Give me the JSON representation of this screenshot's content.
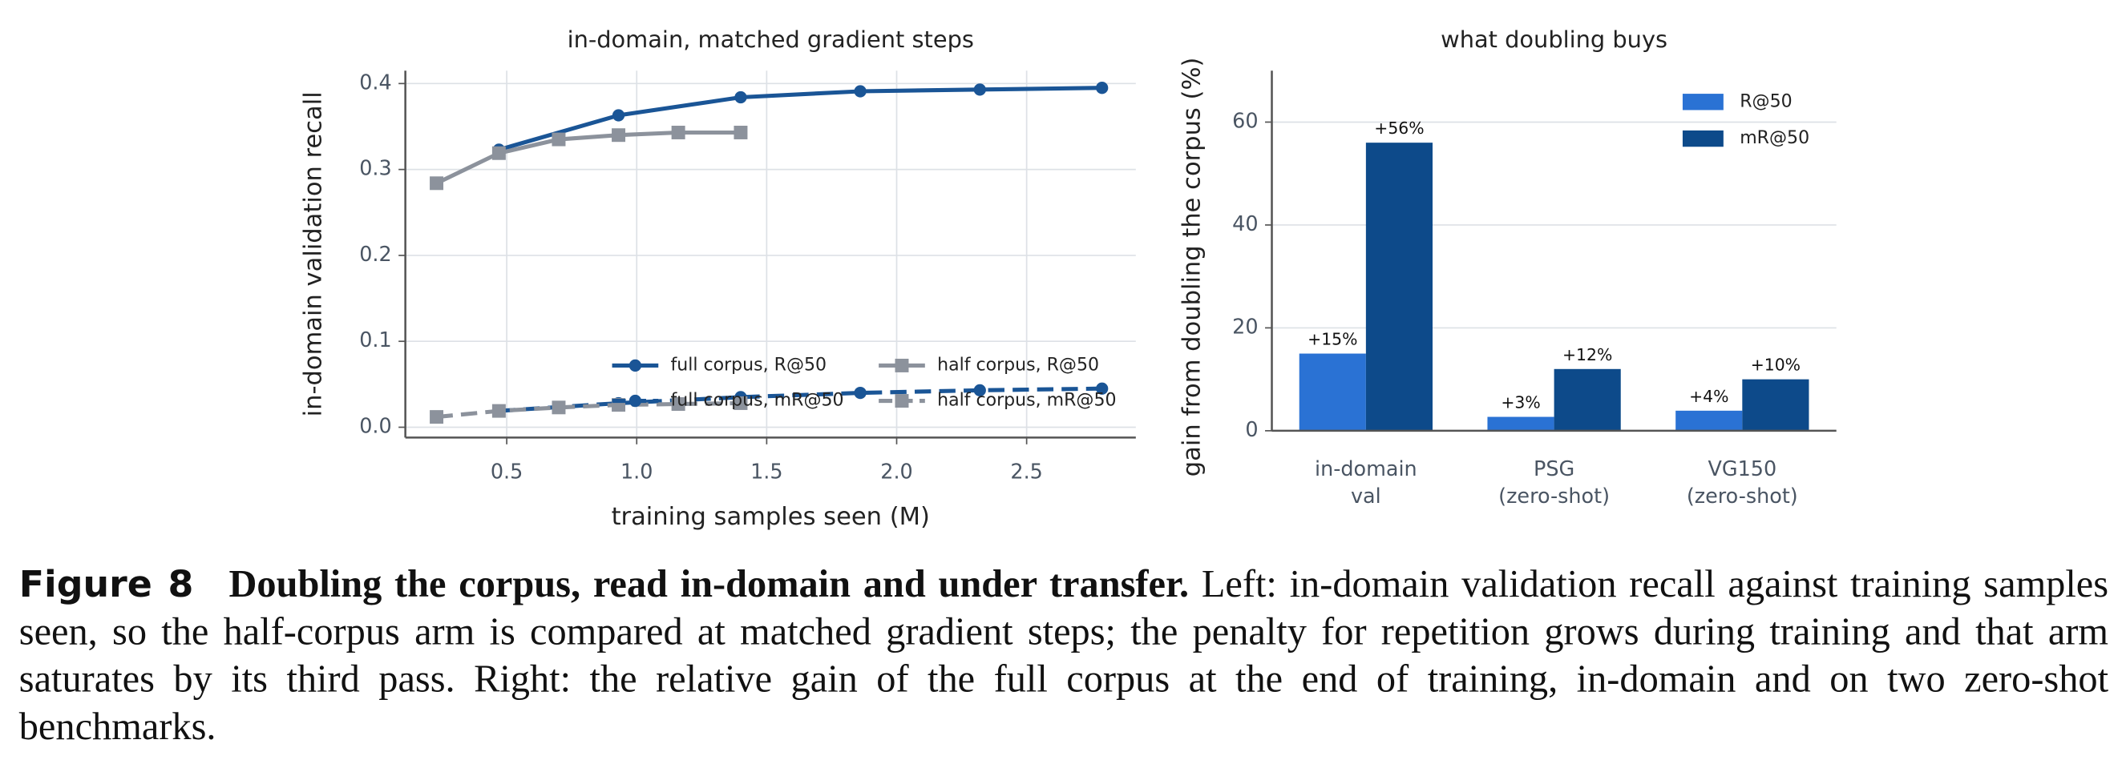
{
  "chart_data": [
    {
      "type": "line",
      "title": "in-domain, matched gradient steps",
      "xlabel": "training samples seen (M)",
      "ylabel": "in-domain validation recall",
      "xlim": [
        0.11,
        2.92
      ],
      "ylim": [
        -0.012,
        0.415
      ],
      "xticks": [
        0.5,
        {
          "value": 1,
          "label": "1.0"
        },
        1.5,
        {
          "value": 2,
          "label": "2.0"
        },
        2.5
      ],
      "yticks": [
        {
          "value": 0,
          "label": "0.0"
        },
        0.1,
        0.2,
        0.3,
        0.4
      ],
      "grid": "both",
      "legend": "lower right",
      "series": [
        {
          "name": "full corpus, R@50",
          "color": "#1a5596",
          "marker": "circle",
          "linestyle": "solid",
          "x": [
            0.47,
            0.93,
            1.4,
            1.86,
            2.32,
            2.79
          ],
          "values": [
            0.323,
            0.363,
            0.384,
            0.391,
            0.393,
            0.395
          ]
        },
        {
          "name": "full corpus, mR@50",
          "color": "#1a5596",
          "marker": "circle",
          "linestyle": "dashed",
          "x": [
            0.47,
            0.93,
            1.4,
            1.86,
            2.32,
            2.79
          ],
          "values": [
            0.019,
            0.028,
            0.035,
            0.04,
            0.043,
            0.045
          ]
        },
        {
          "name": "half corpus, R@50",
          "color": "#8c929c",
          "marker": "square",
          "linestyle": "solid",
          "x": [
            0.23,
            0.47,
            0.7,
            0.93,
            1.16,
            1.4
          ],
          "values": [
            0.284,
            0.319,
            0.335,
            0.34,
            0.343,
            0.343
          ]
        },
        {
          "name": "half corpus, mR@50",
          "color": "#8c929c",
          "marker": "square",
          "linestyle": "dashed",
          "x": [
            0.23,
            0.47,
            0.7,
            0.93,
            1.16,
            1.4
          ],
          "values": [
            0.012,
            0.019,
            0.023,
            0.026,
            0.027,
            0.028
          ]
        }
      ]
    },
    {
      "type": "bar",
      "title": "what doubling buys",
      "ylabel": "gain from doubling the corpus (%)",
      "categories": [
        "in-domain\nval",
        "PSG\n(zero-shot)",
        "VG150\n(zero-shot)"
      ],
      "ylim": [
        0,
        70
      ],
      "yticks": [
        0,
        20,
        40,
        60
      ],
      "grid": "y",
      "legend": "upper right",
      "series": [
        {
          "name": "R@50",
          "color": "#2a72d4",
          "values": [
            15,
            2.7,
            3.9
          ],
          "value_labels": [
            "+15%",
            "+3%",
            "+4%"
          ]
        },
        {
          "name": "mR@50",
          "color": "#0d4a8a",
          "values": [
            56,
            12,
            10
          ],
          "value_labels": [
            "+56%",
            "+12%",
            "+10%"
          ]
        }
      ]
    }
  ],
  "caption": {
    "label": "Figure 8",
    "title": "Doubling the corpus, read in-domain and under transfer.",
    "text": "Left: in-domain validation recall against training samples seen, so the half-corpus arm is compared at matched gradient steps; the penalty for repetition grows during training and that arm saturates by its third pass. Right: the relative gain of the full corpus at the end of training, in-domain and on two zero-shot benchmarks."
  }
}
